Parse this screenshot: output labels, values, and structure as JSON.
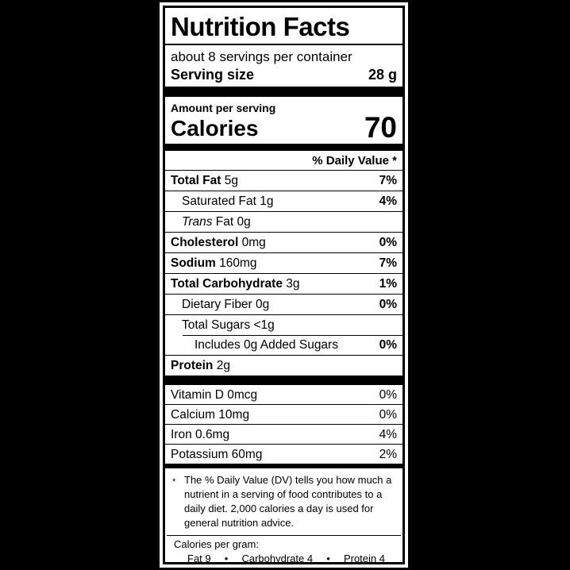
{
  "colors": {
    "background": "#000000",
    "label_bg": "#ffffff",
    "text": "#000000"
  },
  "label": {
    "title": "Nutrition Facts",
    "servings_per_container": "about 8 servings per container",
    "serving_size": {
      "label": "Serving size",
      "value": "28 g"
    },
    "amount_per_serving": "Amount per serving",
    "calories": {
      "label": "Calories",
      "value": "70"
    },
    "daily_value_header": "% Daily Value *",
    "nutrients": [
      {
        "name": "Total Fat",
        "amount": "5g",
        "dv": "7%"
      },
      {
        "name": "Saturated Fat",
        "amount": "1g",
        "dv": "4%"
      },
      {
        "name": "Trans",
        "amount": "Fat 0g",
        "dv": ""
      },
      {
        "name": "Cholesterol",
        "amount": "0mg",
        "dv": "0%"
      },
      {
        "name": "Sodium",
        "amount": "160mg",
        "dv": "7%"
      },
      {
        "name": "Total Carbohydrate",
        "amount": "3g",
        "dv": "1%"
      },
      {
        "name": "Dietary Fiber",
        "amount": "0g",
        "dv": "0%"
      },
      {
        "name": "Total Sugars",
        "amount": "<1g",
        "dv": ""
      },
      {
        "name": "Includes 0g Added Sugars",
        "amount": "",
        "dv": "0%"
      },
      {
        "name": "Protein",
        "amount": "2g",
        "dv": ""
      }
    ],
    "micronutrients": [
      {
        "name": "Vitamin D 0mcg",
        "dv": "0%"
      },
      {
        "name": "Calcium 10mg",
        "dv": "0%"
      },
      {
        "name": "Iron 0.6mg",
        "dv": "4%"
      },
      {
        "name": "Potassium 60mg",
        "dv": "2%"
      }
    ],
    "footnote": {
      "marker": "*",
      "text": "The % Daily Value (DV) tells you how much a nutrient in a serving of food contributes to a daily diet. 2,000 calories a day is used for general nutrition advice."
    },
    "calories_per_gram": {
      "heading": "Calories per gram:",
      "separator": "•",
      "items": [
        "Fat 9",
        "Carbohydrate 4",
        "Protein 4"
      ]
    }
  }
}
